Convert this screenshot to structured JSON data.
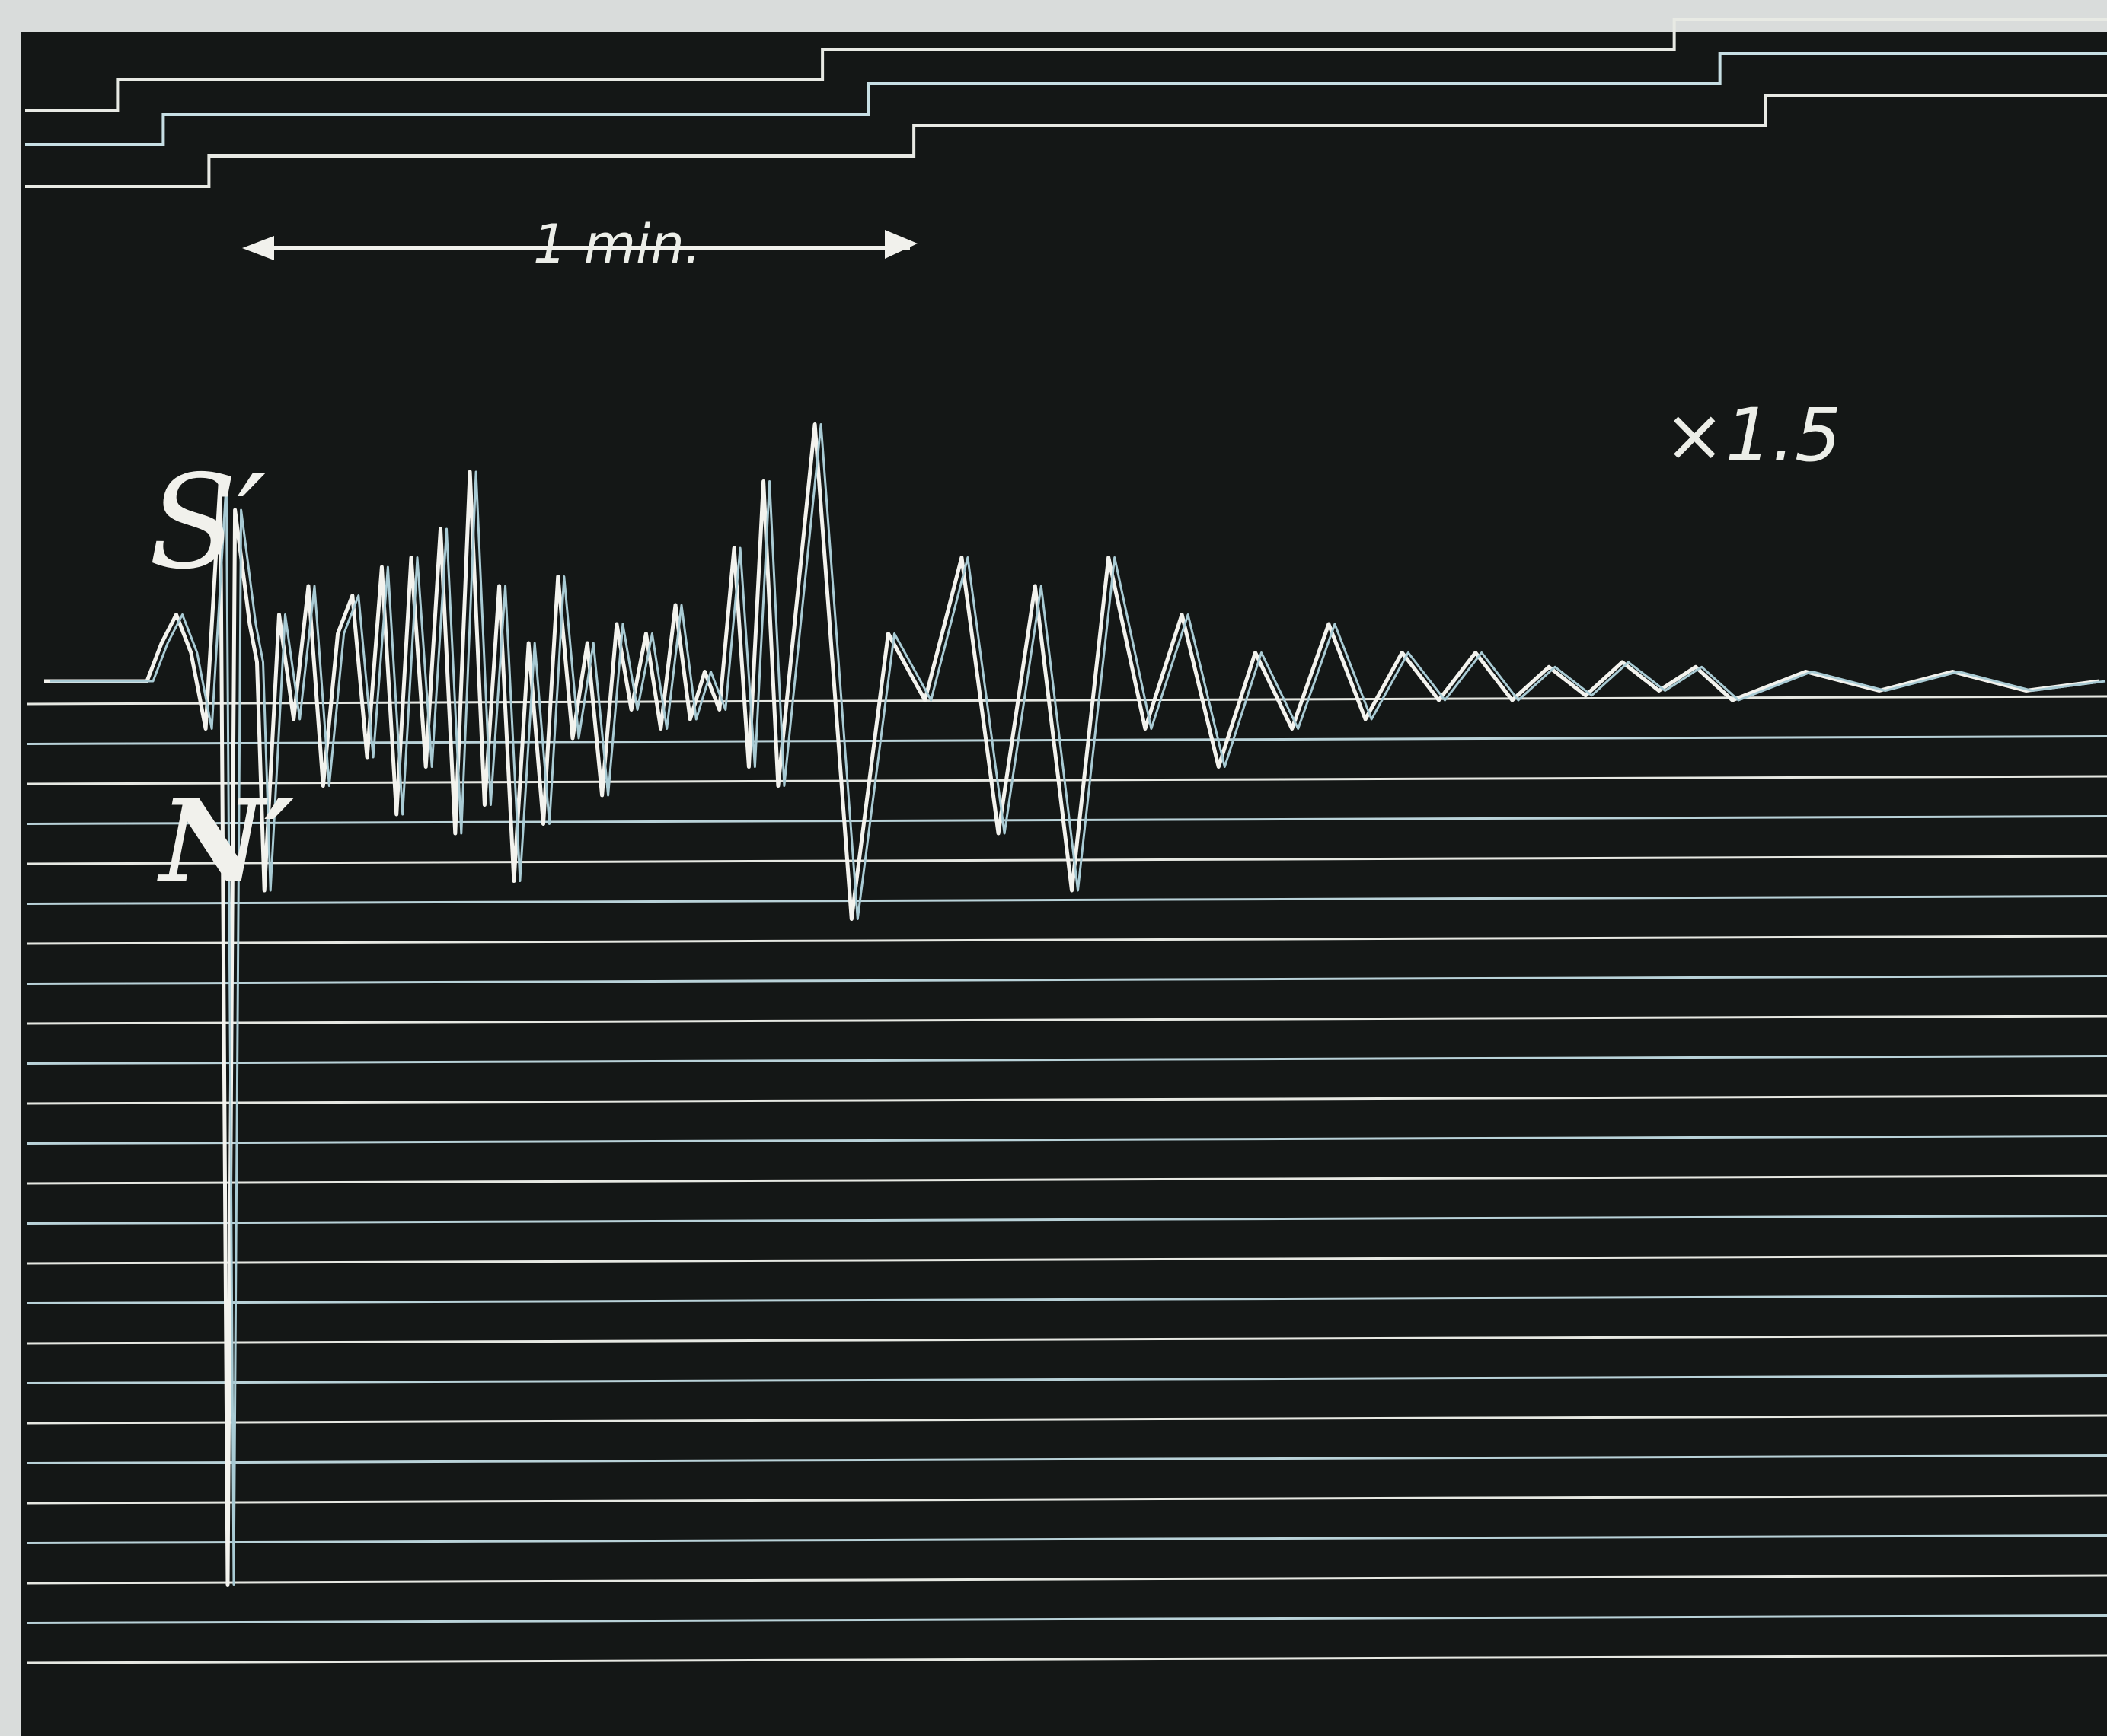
{
  "chart_data": {
    "type": "line",
    "title": "",
    "xlabel": "",
    "ylabel": "",
    "labels": {
      "upper_component": "S′",
      "lower_component": "N′",
      "magnification": "×1.5",
      "time_scale": "1 min."
    },
    "time_scale_minutes": 1,
    "traces": [
      {
        "id": "record",
        "description_role": "main seismic trace",
        "x": [
          0.0,
          0.14,
          0.16,
          0.18,
          0.2,
          0.22,
          0.24,
          0.25,
          0.26,
          0.27,
          0.28,
          0.29,
          0.3,
          0.32,
          0.34,
          0.36,
          0.38,
          0.4,
          0.42,
          0.44,
          0.46,
          0.48,
          0.5,
          0.52,
          0.54,
          0.56,
          0.58,
          0.6,
          0.62,
          0.64,
          0.66,
          0.68,
          0.7,
          0.72,
          0.74,
          0.76,
          0.78,
          0.8,
          0.82,
          0.84,
          0.86,
          0.88,
          0.9,
          0.92,
          0.94,
          0.96,
          0.98,
          1.0,
          1.05,
          1.1,
          1.15,
          1.2,
          1.25,
          1.3,
          1.35,
          1.4,
          1.45,
          1.5,
          1.55,
          1.6,
          1.65,
          1.7,
          1.75,
          1.8,
          1.85,
          1.9,
          1.95,
          2.0,
          2.05,
          2.1,
          2.15,
          2.2,
          2.25,
          2.3,
          2.4,
          2.5,
          2.6,
          2.7,
          2.8
        ],
        "y": [
          0.0,
          0.0,
          0.4,
          0.7,
          0.3,
          -0.5,
          2.1,
          -9.5,
          1.8,
          1.2,
          0.6,
          0.2,
          -2.2,
          0.7,
          -0.4,
          1.0,
          -1.1,
          0.5,
          0.9,
          -0.8,
          1.2,
          -1.4,
          1.3,
          -0.9,
          1.6,
          -1.6,
          2.2,
          -1.3,
          1.0,
          -2.1,
          0.4,
          -1.5,
          1.1,
          -0.6,
          0.4,
          -1.2,
          0.6,
          -0.3,
          0.5,
          -0.5,
          0.8,
          -0.4,
          0.1,
          -0.3,
          1.4,
          -0.9,
          2.1,
          -1.1,
          2.7,
          -2.5,
          0.5,
          -0.2,
          1.3,
          -1.6,
          1.0,
          -2.2,
          1.3,
          -0.5,
          0.7,
          -0.9,
          0.3,
          -0.5,
          0.6,
          -0.4,
          0.3,
          -0.2,
          0.3,
          -0.2,
          0.15,
          -0.15,
          0.2,
          -0.1,
          0.15,
          -0.2,
          0.1,
          -0.1,
          0.1,
          -0.1,
          0.0
        ]
      }
    ],
    "time_marks": [
      0.1,
      1.05,
      2.2
    ],
    "grid": true
  }
}
